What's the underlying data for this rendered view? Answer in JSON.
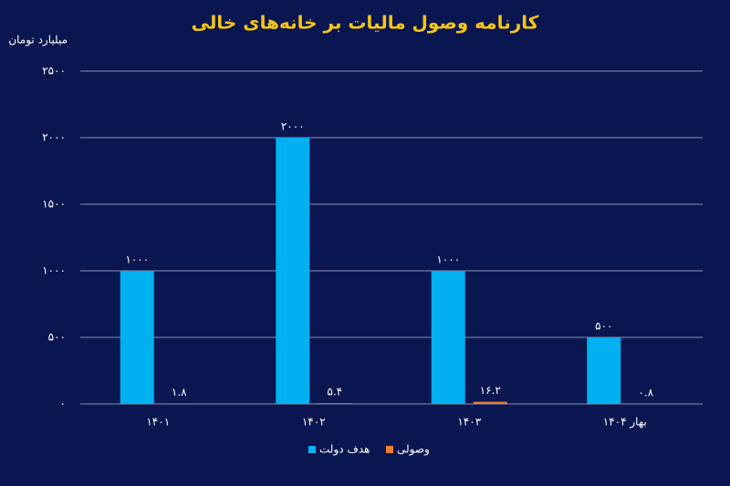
{
  "chart_data": {
    "type": "bar",
    "title": "کارنامه وصول مالیات بر خانه‌های خالی",
    "y_label": "میلیارد تومان",
    "categories": [
      "۱۴۰۱",
      "۱۴۰۲",
      "۱۴۰۳",
      "بهار ۱۴۰۴"
    ],
    "series": [
      {
        "name": "هدف دولت",
        "color": "#00b0f0",
        "values": [
          1000,
          2000,
          1000,
          500
        ],
        "value_labels": [
          "۱۰۰۰",
          "۲۰۰۰",
          "۱۰۰۰",
          "۵۰۰"
        ]
      },
      {
        "name": "وصولی",
        "color": "#ed7d31",
        "values": [
          1.8,
          5.4,
          16.2,
          0.8
        ],
        "value_labels": [
          "۱.۸",
          "۵.۴",
          "۱۶.۲",
          "۰.۸"
        ]
      }
    ],
    "ylim": [
      0,
      2500
    ],
    "yticks": [
      {
        "value": 0,
        "label": "۰"
      },
      {
        "value": 500,
        "label": "۵۰۰"
      },
      {
        "value": 1000,
        "label": "۱۰۰۰"
      },
      {
        "value": 1500,
        "label": "۱۵۰۰"
      },
      {
        "value": 2000,
        "label": "۲۰۰۰"
      },
      {
        "value": 2500,
        "label": "۲۵۰۰"
      }
    ],
    "grid": true
  }
}
